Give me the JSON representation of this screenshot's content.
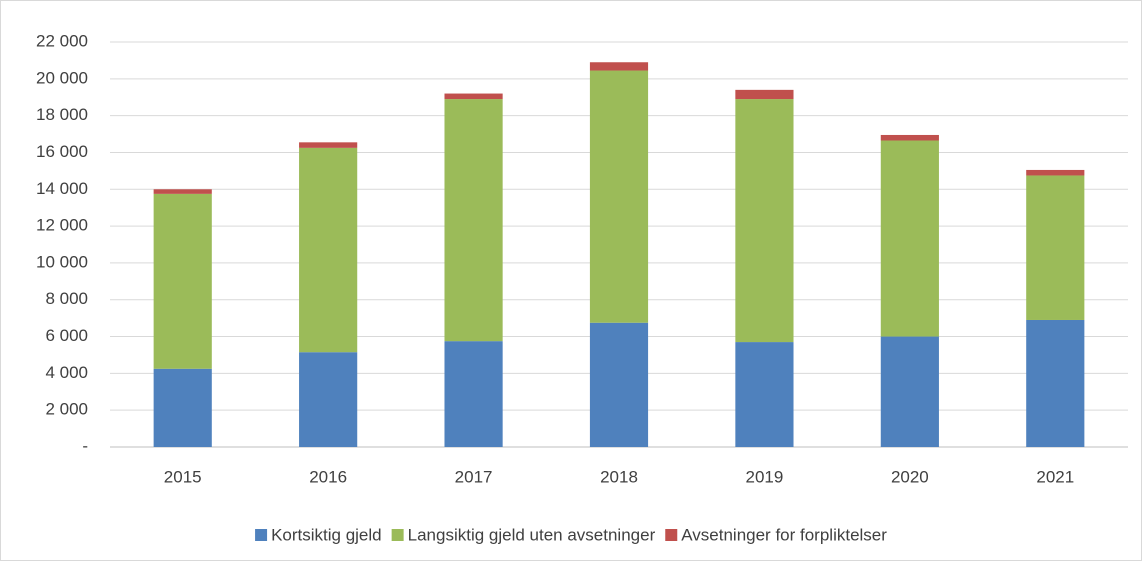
{
  "chart_data": {
    "type": "bar",
    "stacked": true,
    "categories": [
      "2015",
      "2016",
      "2017",
      "2018",
      "2019",
      "2020",
      "2021"
    ],
    "series": [
      {
        "name": "Kortsiktig gjeld",
        "color": "#4f81bd",
        "values": [
          4250,
          5150,
          5750,
          6750,
          5700,
          6000,
          6900
        ]
      },
      {
        "name": "Langsiktig gjeld uten avsetninger",
        "color": "#9bbb59",
        "values": [
          9500,
          11100,
          13150,
          13700,
          13200,
          10650,
          7850
        ]
      },
      {
        "name": "Avsetninger for forpliktelser",
        "color": "#c0504d",
        "values": [
          250,
          300,
          300,
          450,
          500,
          300,
          300
        ]
      }
    ],
    "ylim": [
      0,
      22000
    ],
    "yticks": [
      {
        "value": 0,
        "label": "-"
      },
      {
        "value": 2000,
        "label": "2 000"
      },
      {
        "value": 4000,
        "label": "4 000"
      },
      {
        "value": 6000,
        "label": "6 000"
      },
      {
        "value": 8000,
        "label": "8 000"
      },
      {
        "value": 10000,
        "label": "10 000"
      },
      {
        "value": 12000,
        "label": "12 000"
      },
      {
        "value": 14000,
        "label": "14 000"
      },
      {
        "value": 16000,
        "label": "16 000"
      },
      {
        "value": 18000,
        "label": "18 000"
      },
      {
        "value": 20000,
        "label": "20 000"
      },
      {
        "value": 22000,
        "label": "22 000"
      }
    ],
    "grid": true,
    "legend": "bottom"
  }
}
